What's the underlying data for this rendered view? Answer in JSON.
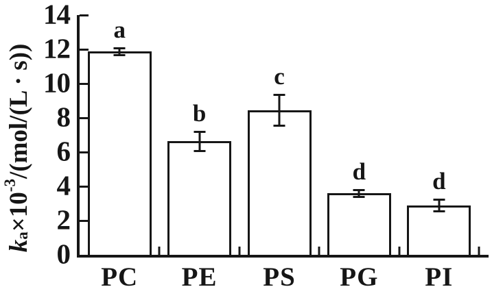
{
  "figure": {
    "background_color": "#ffffff",
    "ink_color": "#161616"
  },
  "chart_data": {
    "type": "bar",
    "title": "",
    "xlabel": "",
    "ylabel": "ka×10-3/(mol/(L · s))",
    "ylabel_parts": {
      "symbol": "k",
      "symbol_subscript": "a",
      "multiplier": "×10",
      "exponent": "-3",
      "units": "/(mol/(L · s))"
    },
    "categories": [
      "PC",
      "PE",
      "PS",
      "PG",
      "PI"
    ],
    "values": [
      11.9,
      6.65,
      8.45,
      3.6,
      2.9
    ],
    "error_bars": [
      0.2,
      0.55,
      0.9,
      0.2,
      0.35
    ],
    "significance_letters": [
      "a",
      "b",
      "c",
      "d",
      "d"
    ],
    "ylim": [
      0,
      14
    ],
    "yticks": [
      0,
      2,
      4,
      6,
      8,
      10,
      12,
      14
    ],
    "grid": "off",
    "legend": "none",
    "bar_fill": "#ffffff",
    "bar_border": "#161616"
  }
}
